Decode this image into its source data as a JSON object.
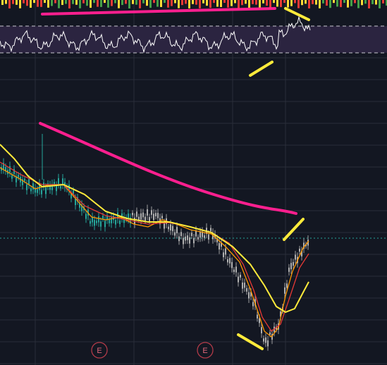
{
  "markers": [
    {
      "label": "E"
    },
    {
      "label": "E"
    }
  ]
}
